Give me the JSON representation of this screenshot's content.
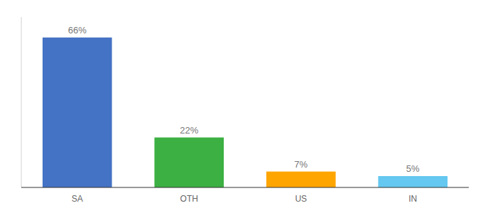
{
  "chart_data": {
    "type": "bar",
    "categories": [
      "SA",
      "OTH",
      "US",
      "IN"
    ],
    "values": [
      66,
      22,
      7,
      5
    ],
    "value_labels": [
      "66%",
      "22%",
      "7%",
      "5%"
    ],
    "colors": [
      "#4472C4",
      "#3CB043",
      "#FFA500",
      "#64C8F0"
    ],
    "ylim": [
      0,
      75
    ],
    "data_labels": true,
    "tick_labels": "x"
  }
}
